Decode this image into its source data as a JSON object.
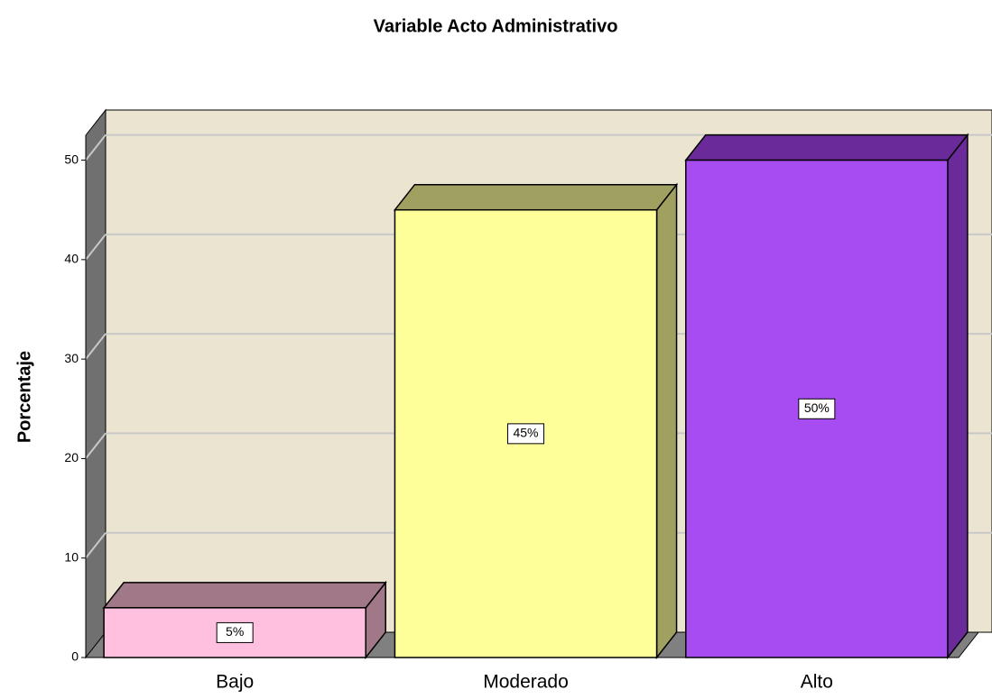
{
  "chart_data": {
    "type": "bar3d",
    "title": "Variable Acto Administrativo",
    "y_label": "Porcentaje",
    "categories": [
      "Bajo",
      "Moderado",
      "Alto"
    ],
    "values": [
      5,
      45,
      50
    ],
    "value_labels": [
      "5%",
      "45%",
      "50%"
    ],
    "colors": [
      "#ffc0e0",
      "#ffff99",
      "#a64cf0"
    ],
    "top_colors": [
      "#a07888",
      "#a0a060",
      "#6a2a9a"
    ],
    "side_colors": [
      "#a07888",
      "#a0a060",
      "#6a2a9a"
    ],
    "ylim": [
      0,
      52.5
    ],
    "yticks": [
      0,
      10,
      20,
      30,
      40,
      50
    ],
    "grid": true
  }
}
